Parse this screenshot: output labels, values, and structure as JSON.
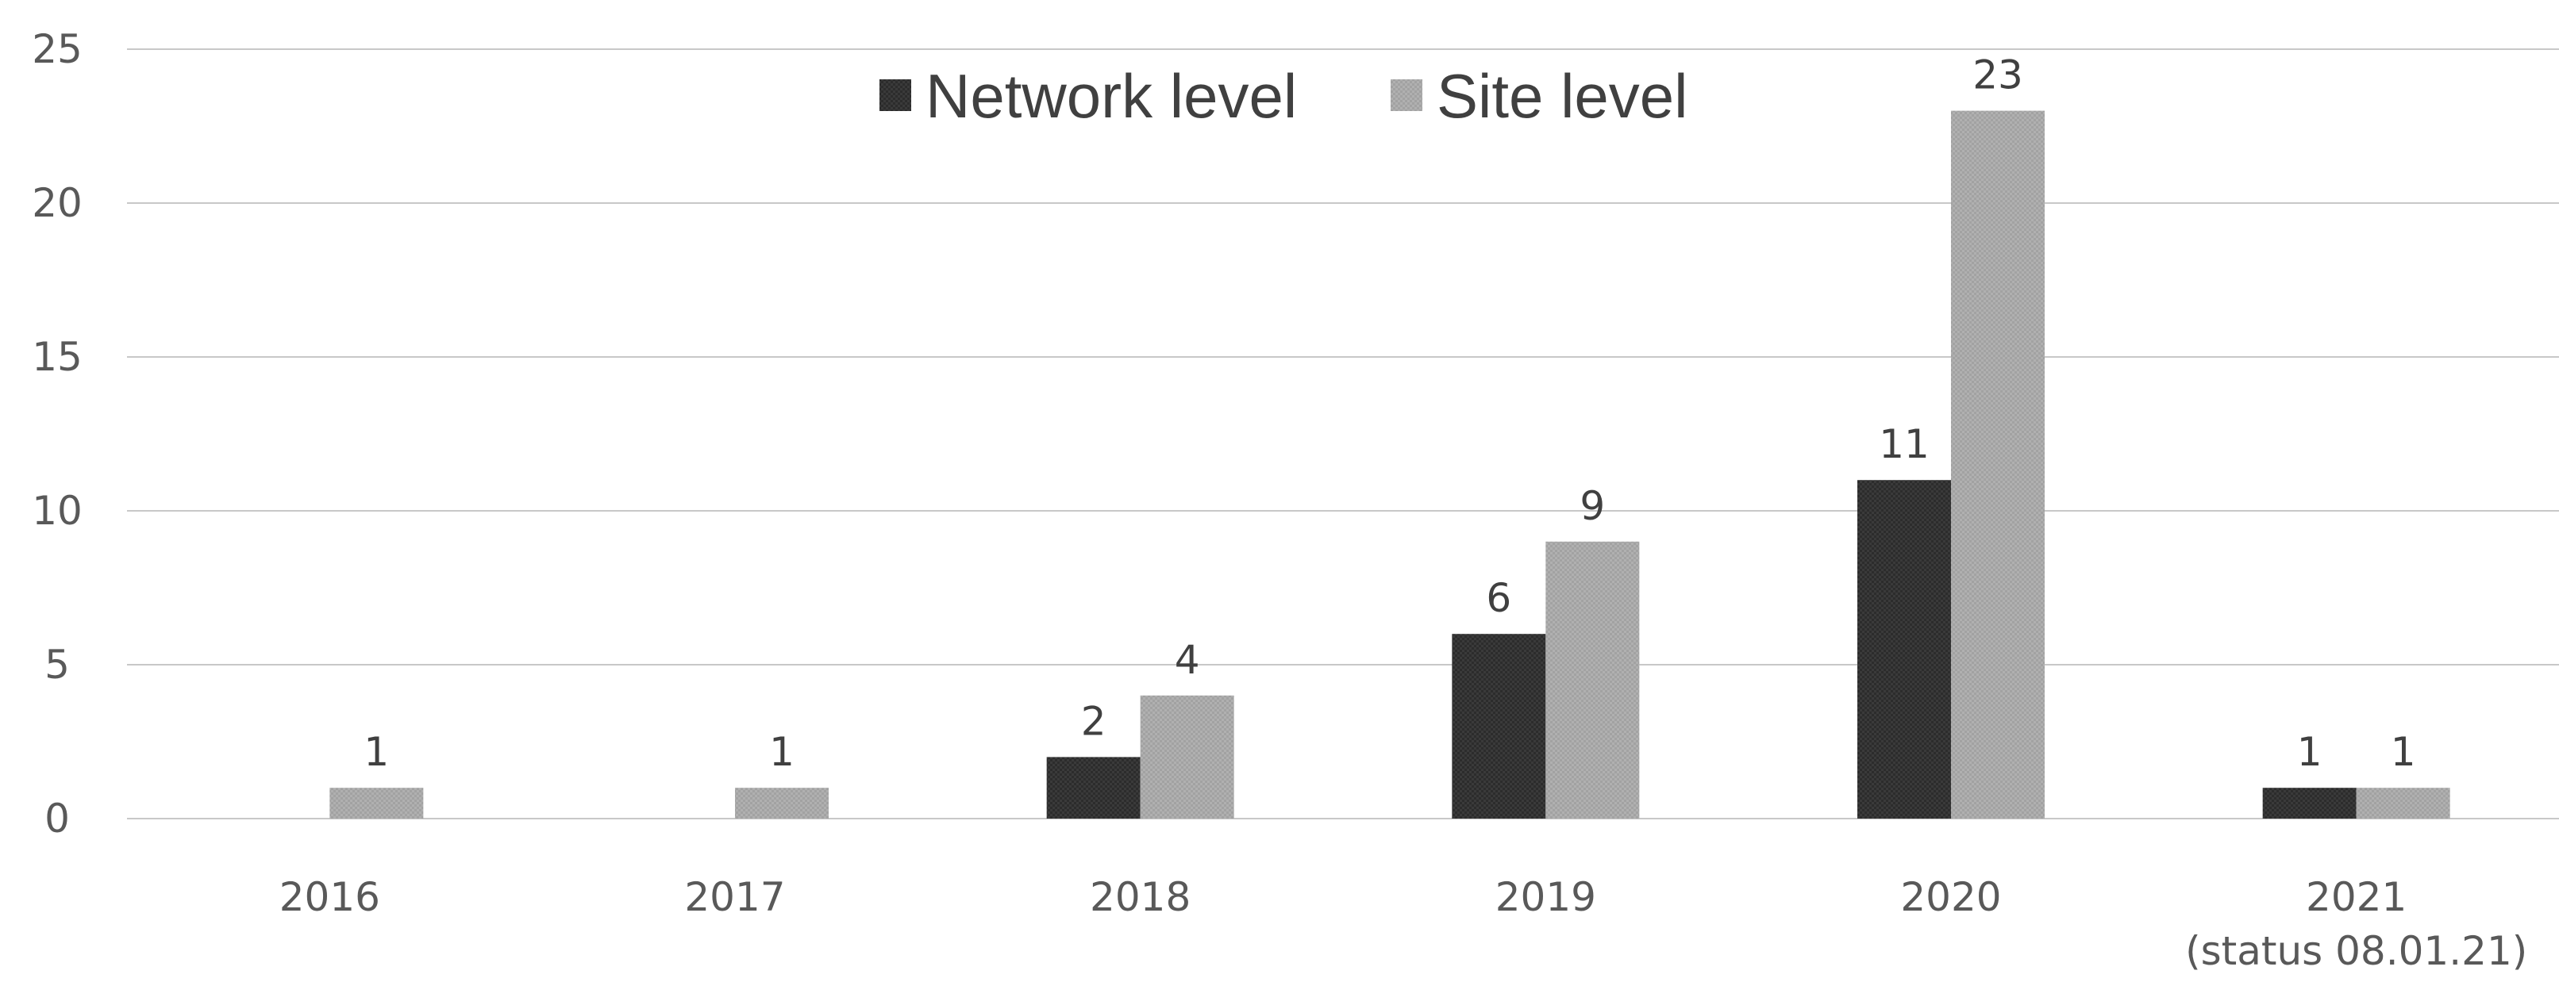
{
  "chart_data": {
    "type": "bar",
    "categories": [
      "2016",
      "2017",
      "2018",
      "2019",
      "2020",
      "2021\n(status 08.01.21)"
    ],
    "series": [
      {
        "name": "Network level",
        "color": "#3a3a3a",
        "values": [
          null,
          null,
          2,
          6,
          11,
          1
        ],
        "labels": [
          "",
          "",
          "2",
          "6",
          "11",
          "1"
        ]
      },
      {
        "name": "Site level",
        "color": "#ababab",
        "values": [
          1,
          1,
          4,
          9,
          23,
          1
        ],
        "labels": [
          "1",
          "1",
          "4",
          "9",
          "23",
          "1"
        ]
      }
    ],
    "ylim": [
      0,
      25
    ],
    "yticks": [
      "0",
      "5",
      "10",
      "15",
      "20",
      "25"
    ],
    "grid": true,
    "legend_position": "top-center",
    "title": "",
    "xlabel": "",
    "ylabel": ""
  }
}
